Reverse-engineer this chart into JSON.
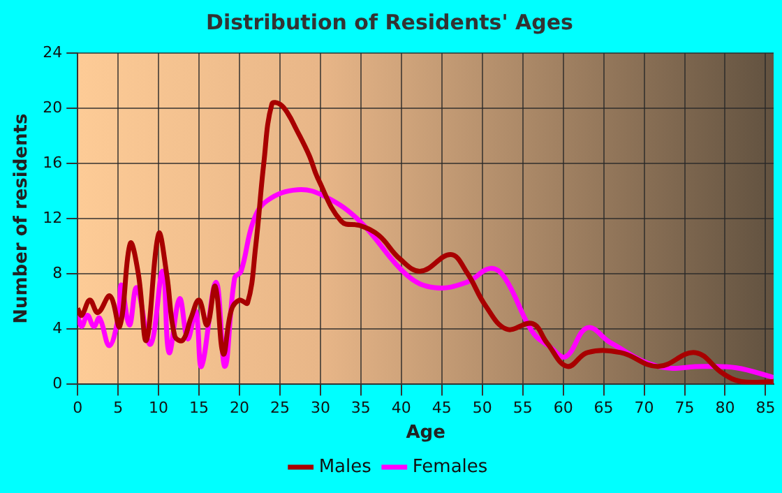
{
  "chart_data": {
    "type": "line",
    "title": "Distribution of Residents' Ages",
    "xlabel": "Age",
    "ylabel": "Number of residents",
    "xlim": [
      0,
      86
    ],
    "xticks": [
      0,
      5,
      10,
      15,
      20,
      25,
      30,
      35,
      40,
      45,
      50,
      55,
      60,
      65,
      70,
      75,
      80,
      85
    ],
    "ylim": [
      0,
      24
    ],
    "yticks": [
      0,
      4,
      8,
      12,
      16,
      20,
      24
    ],
    "grid": true,
    "legend": "bottom",
    "marker": "none",
    "line_style": "solid",
    "series": [
      {
        "name": "Males",
        "color": "#a80000",
        "x": [
          0,
          0.5,
          1.5,
          2.5,
          4,
          5.2,
          6.5,
          7.5,
          8.5,
          10,
          11,
          12,
          13,
          14,
          15,
          16,
          17,
          18,
          19,
          20,
          21,
          22,
          23,
          24,
          25,
          26,
          27,
          28.6,
          29.7,
          32.6,
          34.9,
          37.2,
          39.8,
          42.4,
          46.1,
          48.1,
          50.4,
          53,
          56.2,
          58,
          60.5,
          63,
          67.1,
          71.7,
          76.3,
          79.7,
          82,
          86
        ],
        "values": [
          5.5,
          5.0,
          6.1,
          5.2,
          6.4,
          4.2,
          10.2,
          8,
          3.2,
          10.9,
          8,
          3.5,
          3.2,
          4.8,
          6.1,
          4.3,
          7.1,
          2.2,
          5.4,
          6.1,
          5.9,
          10,
          16,
          20.3,
          20.3,
          19.6,
          18.5,
          16.6,
          14.9,
          11.8,
          11.5,
          10.8,
          9.1,
          8.2,
          9.4,
          8.1,
          5.7,
          4.0,
          4.4,
          3.0,
          1.3,
          2.3,
          2.3,
          1.3,
          2.3,
          0.8,
          0.2,
          0.2
        ]
      },
      {
        "name": "Females",
        "color": "#ff00ff",
        "x": [
          0,
          0.5,
          1.2,
          2,
          2.7,
          3.9,
          5,
          5.4,
          6.4,
          7.3,
          9,
          10.5,
          11.3,
          12.6,
          13.6,
          14.6,
          15.3,
          17.1,
          18.2,
          19.4,
          20.2,
          21.7,
          23.4,
          27.2,
          30.6,
          34.9,
          40.7,
          44.2,
          48.1,
          51,
          52.8,
          56.2,
          58.4,
          60.3,
          63,
          65.9,
          71.7,
          77.4,
          81.4,
          86
        ],
        "values": [
          5.0,
          4.2,
          5.0,
          4.2,
          4.8,
          2.8,
          4.8,
          7.2,
          4.3,
          7.0,
          2.9,
          8.2,
          2.3,
          6.2,
          3.3,
          5.3,
          1.3,
          7.4,
          1.3,
          7.7,
          8.2,
          11.8,
          13.3,
          14.1,
          13.6,
          11.8,
          7.9,
          7.0,
          7.4,
          8.4,
          7.7,
          3.8,
          2.7,
          2.0,
          4.1,
          3.0,
          1.3,
          1.3,
          1.2,
          0.5
        ]
      }
    ]
  }
}
